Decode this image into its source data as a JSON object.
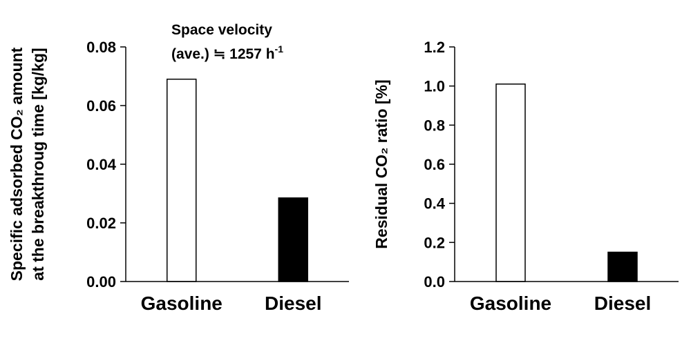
{
  "chart_data": [
    {
      "type": "bar",
      "categories": [
        "Gasoline",
        "Diesel"
      ],
      "values": [
        0.069,
        0.0285
      ],
      "bar_colors": [
        "#ffffff",
        "#000000"
      ],
      "ylabel_line1": "Specific adsorbed CO₂ amount",
      "ylabel_line2": "at the breakthroug time [kg/kg]",
      "ylim": [
        0,
        0.08
      ],
      "yticks": [
        "0.00",
        "0.02",
        "0.04",
        "0.06",
        "0.08"
      ],
      "annotation_line1": "Space velocity",
      "annotation_line2_prefix": "(ave.) ≒ 1257 h",
      "annotation_line2_sup": "-1",
      "grid": false,
      "legend": "none"
    },
    {
      "type": "bar",
      "categories": [
        "Gasoline",
        "Diesel"
      ],
      "values": [
        1.01,
        0.15
      ],
      "bar_colors": [
        "#ffffff",
        "#000000"
      ],
      "ylabel": "Residual CO₂ ratio [%]",
      "ylim": [
        0,
        1.2
      ],
      "yticks": [
        "0.0",
        "0.2",
        "0.4",
        "0.6",
        "0.8",
        "1.0",
        "1.2"
      ],
      "grid": false,
      "legend": "none"
    }
  ]
}
